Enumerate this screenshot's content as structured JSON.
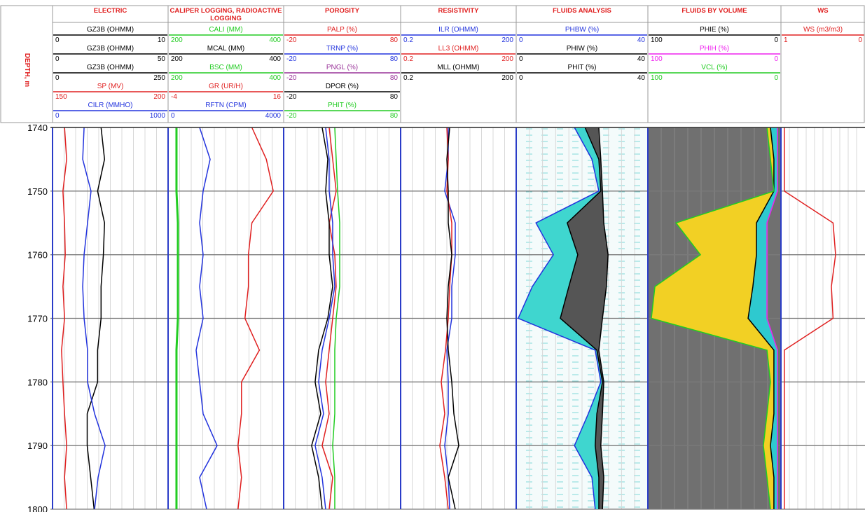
{
  "chart_data": {
    "type": "well-log",
    "y_label": "DEPTH, m",
    "ylim": [
      1740,
      1800
    ],
    "yticks": [
      1740,
      1750,
      1760,
      1770,
      1780,
      1790,
      1800
    ],
    "grid": true,
    "depths": [
      1740,
      1745,
      1750,
      1755,
      1760,
      1765,
      1770,
      1775,
      1780,
      1785,
      1790,
      1795,
      1800
    ],
    "tracks": [
      {
        "title": "ELECTRIC",
        "curves": [
          {
            "name": "GZ3B (OHMM)",
            "color": "#000000",
            "xlim": [
              0,
              10
            ],
            "values": [
              4.2,
              4.5,
              3.9,
              4.5,
              4.4,
              4.2,
              4.2,
              3.9,
              3.9,
              3.0,
              3.0,
              3.3,
              3.6
            ]
          },
          {
            "name": "GZ3B (OHMM)",
            "color": "#000000",
            "xlim": [
              0,
              50
            ]
          },
          {
            "name": "GZ3B (OHMM)",
            "color": "#000000",
            "xlim": [
              0,
              250
            ]
          },
          {
            "name": "SP (MV)",
            "color": "#e02020",
            "xlim": [
              150,
              200
            ],
            "values": [
              155.2,
              156.1,
              154.5,
              155.2,
              155.5,
              154.5,
              155.2,
              153.9,
              154.5,
              155.2,
              156.1,
              155.2,
              156.1
            ]
          },
          {
            "name": "CILR (MMHO)",
            "color": "#2233dd",
            "xlim": [
              0,
              1000
            ],
            "values": [
              273,
              261,
              333,
              303,
              273,
              261,
              273,
              303,
              303,
              364,
              455,
              394,
              364
            ]
          }
        ]
      },
      {
        "title": "CALIPER LOGGING, RADIOACTIVE LOGGING",
        "curves": [
          {
            "name": "CALI (MM)",
            "color": "#22cc22",
            "xlim": [
              200,
              400
            ],
            "values": [
              214.5,
              214.5,
              214.5,
              217,
              217,
              217,
              217,
              214.5,
              214.5,
              214.5,
              214.5,
              214.5,
              214.5
            ]
          },
          {
            "name": "MCAL (MM)",
            "color": "#000000",
            "xlim": [
              200,
              400
            ]
          },
          {
            "name": "BSC (MM)",
            "color": "#22cc22",
            "xlim": [
              200,
              400
            ]
          },
          {
            "name": "GR (UR/H)",
            "color": "#e02020",
            "xlim": [
              -4,
              16
            ],
            "values": [
              10.5,
              13.0,
              14.2,
              10.5,
              9.9,
              9.9,
              9.3,
              11.8,
              8.7,
              8.7,
              8.1,
              8.7,
              8.1
            ]
          },
          {
            "name": "RFTN (CPM)",
            "color": "#2233dd",
            "xlim": [
              0,
              4000
            ],
            "values": [
              1091,
              1455,
              1212,
              1091,
              1212,
              1091,
              1212,
              970,
              1091,
              1212,
              1697,
              1091,
              1333
            ]
          }
        ]
      },
      {
        "title": "POROSITY",
        "curves": [
          {
            "name": "PALP (%)",
            "color": "#e02020",
            "xlim": [
              -20,
              80
            ],
            "values": [
              18.9,
              21.9,
              24.9,
              18.9,
              23.7,
              24.9,
              21.9,
              18.9,
              15.9,
              18.9,
              12.9,
              21.9,
              18.9
            ]
          },
          {
            "name": "TRNP (%)",
            "color": "#2233dd",
            "xlim": [
              -20,
              80
            ],
            "values": [
              15.9,
              18.9,
              18.9,
              21.9,
              21.9,
              23.7,
              18.9,
              12.9,
              9.9,
              14.1,
              6.9,
              12.9,
              15.9
            ]
          },
          {
            "name": "PNGL (%)",
            "color": "#993399",
            "xlim": [
              -20,
              80
            ]
          },
          {
            "name": "DPOR (%)",
            "color": "#000000",
            "xlim": [
              -20,
              80
            ],
            "values": [
              12.9,
              17.7,
              15.9,
              18.9,
              18.9,
              21.9,
              17.7,
              9.9,
              6.9,
              11.7,
              3.9,
              9.9,
              12.9
            ]
          },
          {
            "name": "PHIT (%)",
            "color": "#22cc22",
            "xlim": [
              -20,
              80
            ],
            "values": [
              23.7,
              24.9,
              26.1,
              27.9,
              27.9,
              27.9,
              24.9,
              23.7,
              23.7,
              23.7,
              21.9,
              23.7,
              23.7
            ]
          }
        ]
      },
      {
        "title": "RESISTIVITY",
        "log": true,
        "curves": [
          {
            "name": "ILR (OHMM)",
            "color": "#2233dd",
            "xlim": [
              0.2,
              200
            ],
            "values": [
              3.45,
              3.45,
              2.79,
              5.24,
              5.24,
              4.25,
              4.25,
              3.17,
              3.45,
              3.45,
              2.79,
              3.45,
              3.75
            ]
          },
          {
            "name": "LL3 (OHMM)",
            "color": "#e02020",
            "xlim": [
              0.2,
              200
            ],
            "values": [
              3.17,
              3.45,
              3.17,
              4.25,
              4.25,
              3.75,
              3.45,
              2.92,
              2.27,
              2.79,
              2.08,
              2.79,
              3.45
            ]
          },
          {
            "name": "MLL (OHMM)",
            "color": "#000000",
            "xlim": [
              0.2,
              200
            ],
            "values": [
              3.75,
              3.17,
              3.45,
              3.45,
              4.25,
              3.45,
              3.17,
              3.45,
              4.25,
              4.82,
              6.46,
              3.45,
              5.24
            ]
          }
        ]
      },
      {
        "title": "FLUIDS ANALYSIS",
        "curves": [
          {
            "name": "PHBW (%)",
            "color": "#2233dd",
            "xlim": [
              0,
              40
            ],
            "fill": "#3fd6cf",
            "fill_to": 1,
            "values": [
              17.7,
              23.0,
              25.1,
              6.0,
              11.3,
              4.9,
              0.6,
              24.0,
              25.7,
              21.9,
              17.7,
              23.0,
              24.0
            ]
          },
          {
            "name": "PHIW (%)",
            "color": "#000000",
            "xlim": [
              0,
              40
            ],
            "fill": "#555555",
            "fill_to": 2,
            "values": [
              20.9,
              25.1,
              25.7,
              15.5,
              18.7,
              16.0,
              13.4,
              24.5,
              26.2,
              24.5,
              24.0,
              25.1,
              25.1
            ]
          },
          {
            "name": "PHIT (%)",
            "color": "#000000",
            "xlim": [
              0,
              40
            ],
            "values": [
              25.1,
              25.7,
              26.2,
              26.6,
              27.9,
              27.4,
              26.2,
              25.1,
              26.6,
              26.2,
              25.7,
              26.6,
              26.2
            ]
          }
        ]
      },
      {
        "title": "FLUIDS BY VOLUME",
        "background": "#707070",
        "curves": [
          {
            "name": "PHIE (%)",
            "color": "#000000",
            "xlim": [
              100,
              0
            ],
            "fill": "#2ec9cf",
            "fill_to": 1,
            "values": [
              7.9,
              5.3,
              5.3,
              18.4,
              18.4,
              21.1,
              24.7,
              5.3,
              5.3,
              5.3,
              7.9,
              5.3,
              5.3
            ]
          },
          {
            "name": "PHIH (%)",
            "color": "#ee22ee",
            "xlim": [
              100,
              0
            ],
            "values": [
              2.6,
              2.6,
              2.6,
              10.5,
              10.5,
              10.5,
              10.5,
              2.6,
              2.6,
              2.6,
              2.6,
              2.6,
              2.6
            ]
          },
          {
            "name": "VCL (%)",
            "color": "#22cc22",
            "xlim": [
              100,
              0
            ],
            "fill": "#f2d024",
            "fill_to": 0,
            "values": [
              10.5,
              7.9,
              5.3,
              78.9,
              60.5,
              94.7,
              97.4,
              10.5,
              7.9,
              10.5,
              13.2,
              10.5,
              7.9
            ]
          }
        ]
      },
      {
        "title": "WS",
        "curves": [
          {
            "name": "WS (m3/m3)",
            "color": "#e02020",
            "xlim": [
              1,
              0
            ],
            "values": [
              0.96,
              0.96,
              0.96,
              0.38,
              0.35,
              0.4,
              0.38,
              0.96,
              0.96,
              0.96,
              0.96,
              0.96,
              0.96
            ]
          }
        ]
      }
    ]
  }
}
